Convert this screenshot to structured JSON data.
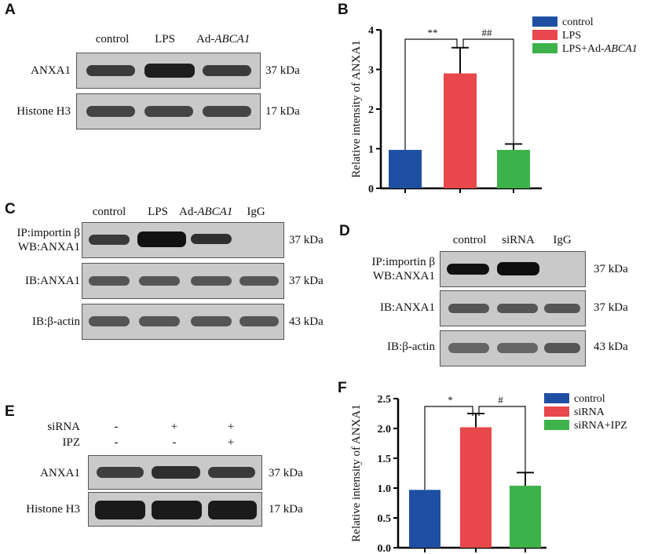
{
  "panels": {
    "A": "A",
    "B": "B",
    "C": "C",
    "D": "D",
    "E": "E",
    "F": "F"
  },
  "panelA": {
    "lanes": [
      "control",
      "LPS",
      "Ad-",
      "ABCA1"
    ],
    "rows": [
      {
        "label": "ANXA1",
        "kda": "37 kDa"
      },
      {
        "label": "Histone H3",
        "kda": "17 kDa"
      }
    ]
  },
  "panelC": {
    "lanes": [
      "control",
      "LPS",
      "Ad-",
      "ABCA1",
      "IgG"
    ],
    "rows": [
      {
        "label1": "IP:importin β",
        "label2": "WB:ANXA1",
        "kda": "37 kDa"
      },
      {
        "label": "IB:ANXA1",
        "kda": "37 kDa"
      },
      {
        "label": "IB:β-actin",
        "kda": "43 kDa"
      }
    ]
  },
  "panelD": {
    "lanes": [
      "control",
      "siRNA",
      "IgG"
    ],
    "rows": [
      {
        "label1": "IP:importin β",
        "label2": "WB:ANXA1",
        "kda": "37 kDa"
      },
      {
        "label": "IB:ANXA1",
        "kda": "37 kDa"
      },
      {
        "label": "IB:β-actin",
        "kda": "43 kDa"
      }
    ]
  },
  "panelE": {
    "conditions": [
      {
        "name": "siRNA",
        "marks": [
          "-",
          "+",
          "+"
        ]
      },
      {
        "name": "IPZ",
        "marks": [
          "-",
          "-",
          "+"
        ]
      }
    ],
    "rows": [
      {
        "label": "ANXA1",
        "kda": "37 kDa"
      },
      {
        "label": "Histone H3",
        "kda": "17 kDa"
      }
    ]
  },
  "chart_data": [
    {
      "panel": "B",
      "type": "bar",
      "ylabel": "Relative intensity of ANXA1",
      "ylim": [
        0,
        4
      ],
      "yticks": [
        "0",
        "1",
        "2",
        "3",
        "4"
      ],
      "categories": [
        "control",
        "LPS",
        "LPS+Ad-ABCA1"
      ],
      "legend": [
        {
          "text": "control",
          "italic": ""
        },
        {
          "text": "LPS",
          "italic": ""
        },
        {
          "text": "LPS+Ad-",
          "italic": "ABCA1"
        }
      ],
      "values": [
        0.97,
        2.9,
        0.97
      ],
      "errors": [
        0,
        0.65,
        0.15
      ],
      "colors": [
        "#1f4fa3",
        "#e8474b",
        "#3db24a"
      ],
      "annotations": [
        "**",
        "##"
      ],
      "legend_position": "top-right"
    },
    {
      "panel": "F",
      "type": "bar",
      "ylabel": "Relative intensity of ANXA1",
      "ylim": [
        0,
        2.5
      ],
      "yticks": [
        "0.0",
        "0.5",
        "1.0",
        "1.5",
        "2.0",
        "2.5"
      ],
      "categories": [
        "control",
        "siRNA",
        "siRNA+IPZ"
      ],
      "legend": [
        {
          "text": "control",
          "italic": ""
        },
        {
          "text": "siRNA",
          "italic": ""
        },
        {
          "text": "siRNA+IPZ",
          "italic": ""
        }
      ],
      "values": [
        0.97,
        2.02,
        1.04
      ],
      "errors": [
        0,
        0.23,
        0.22
      ],
      "colors": [
        "#1f4fa3",
        "#e8474b",
        "#3db24a"
      ],
      "annotations": [
        "*",
        "#"
      ],
      "legend_position": "top-right"
    }
  ]
}
